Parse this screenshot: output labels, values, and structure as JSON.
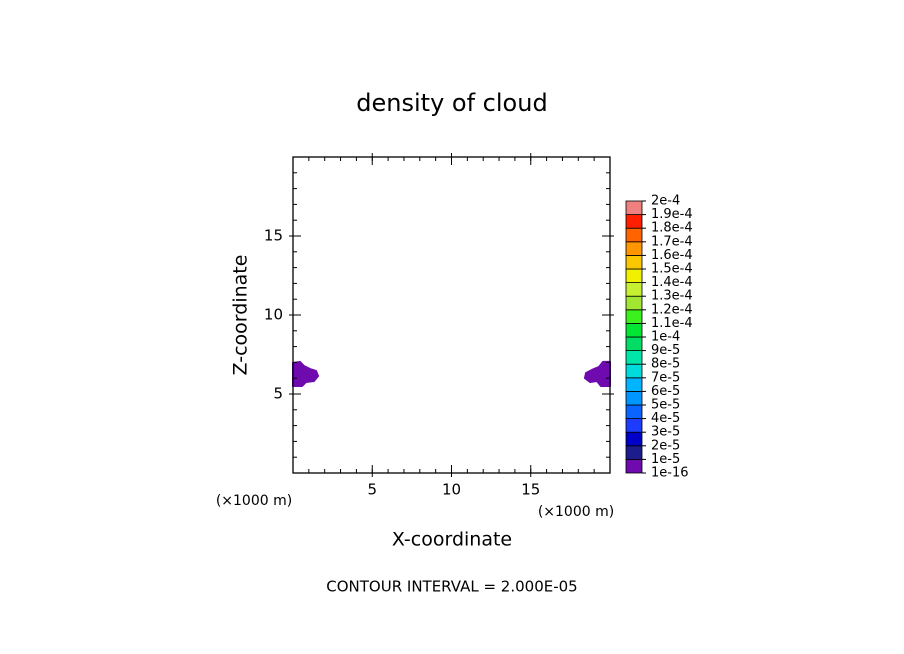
{
  "chart_data": {
    "type": "contour",
    "title": "density of cloud",
    "x_label": "X-coordinate",
    "y_label": "Z-coordinate",
    "x_unit": "(×1000 m)",
    "y_unit": "(×1000 m)",
    "annotation": "CONTOUR INTERVAL = 2.000E-05",
    "xlim": [
      0,
      20
    ],
    "ylim": [
      0,
      20
    ],
    "xticks": [
      5,
      10,
      15
    ],
    "yticks": [
      5,
      10,
      15
    ],
    "minor_step": 1,
    "regions": [
      {
        "color": "#6e0aae",
        "x": [
          0,
          0.44,
          0.69,
          1.07,
          1.45,
          1.58,
          1.32,
          0.82,
          0.57,
          0
        ],
        "y": [
          6.96,
          7.03,
          6.77,
          6.58,
          6.46,
          6.14,
          5.82,
          5.76,
          5.51,
          5.51
        ]
      },
      {
        "color": "#6e0aae",
        "x": [
          20,
          19.56,
          19.31,
          18.86,
          18.49,
          18.42,
          18.74,
          19.18,
          19.43,
          20
        ],
        "y": [
          7.03,
          7.03,
          6.71,
          6.52,
          6.33,
          6.01,
          5.76,
          5.82,
          5.51,
          5.51
        ]
      }
    ],
    "colorbar": {
      "levels": [
        {
          "value": 1e-16,
          "label": "1e-16"
        },
        {
          "value": 1e-05,
          "label": "1e-5"
        },
        {
          "value": 2e-05,
          "label": "2e-5"
        },
        {
          "value": 3e-05,
          "label": "3e-5"
        },
        {
          "value": 4e-05,
          "label": "4e-5"
        },
        {
          "value": 5e-05,
          "label": "5e-5"
        },
        {
          "value": 6e-05,
          "label": "6e-5"
        },
        {
          "value": 7e-05,
          "label": "7e-5"
        },
        {
          "value": 8e-05,
          "label": "8e-5"
        },
        {
          "value": 9e-05,
          "label": "9e-5"
        },
        {
          "value": 0.0001,
          "label": "1e-4"
        },
        {
          "value": 0.00011,
          "label": "1.1e-4"
        },
        {
          "value": 0.00012,
          "label": "1.2e-4"
        },
        {
          "value": 0.00013,
          "label": "1.3e-4"
        },
        {
          "value": 0.00014,
          "label": "1.4e-4"
        },
        {
          "value": 0.00015,
          "label": "1.5e-4"
        },
        {
          "value": 0.00016,
          "label": "1.6e-4"
        },
        {
          "value": 0.00017,
          "label": "1.7e-4"
        },
        {
          "value": 0.00018,
          "label": "1.8e-4"
        },
        {
          "value": 0.00019,
          "label": "1.9e-4"
        },
        {
          "value": 0.0002,
          "label": "2e-4"
        }
      ],
      "colors": [
        "#6e0aae",
        "#1c1c8c",
        "#0000c8",
        "#1e3cff",
        "#0a64ff",
        "#0096ff",
        "#00b4ff",
        "#00dcdc",
        "#00e6aa",
        "#00dc64",
        "#00e632",
        "#3cf01e",
        "#a0e632",
        "#c8f032",
        "#f0f000",
        "#fac800",
        "#ff9600",
        "#ff6400",
        "#ff1e00",
        "#f08080"
      ]
    }
  }
}
